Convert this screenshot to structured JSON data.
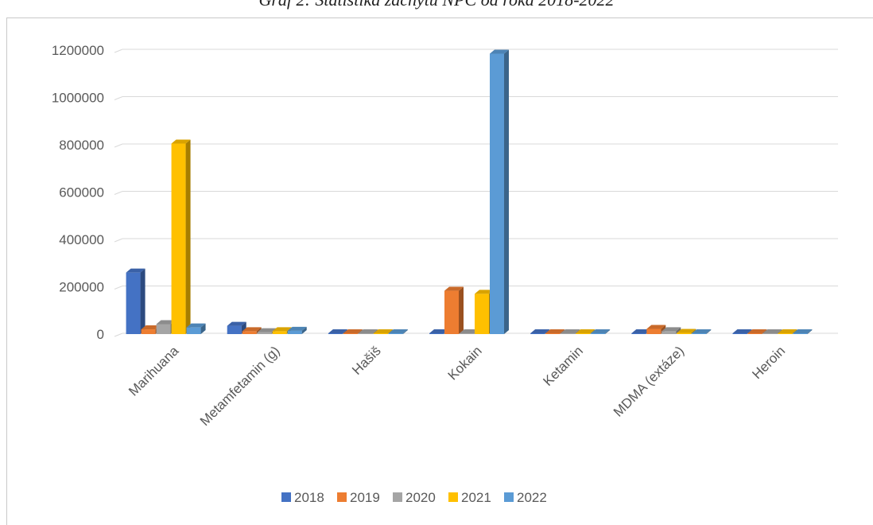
{
  "caption": "Graf 2: Štatistika záchytu NPC od roka 2018-2022",
  "chart_data": {
    "type": "bar",
    "style": "3d-clustered-column",
    "title": "",
    "xlabel": "",
    "ylabel": "",
    "categories": [
      "Marihuana",
      "Metamfetamin (g)",
      "Hašiš",
      "Kokain",
      "Ketamin",
      "MDMA (extáze)",
      "Heroin"
    ],
    "ylim": [
      0,
      1200000
    ],
    "y_ticks": [
      0,
      200000,
      400000,
      600000,
      800000,
      1000000,
      1200000
    ],
    "y_tick_labels": [
      "0",
      "200000",
      "400000",
      "600000",
      "800000",
      "1000000",
      "1200000"
    ],
    "grid": true,
    "legend_position": "bottom",
    "series": [
      {
        "name": "2018",
        "color": "#4472C4",
        "values": [
          260000,
          35000,
          1000,
          1000,
          1000,
          2000,
          1000
        ]
      },
      {
        "name": "2019",
        "color": "#ED7D31",
        "values": [
          20000,
          12000,
          1000,
          183000,
          1000,
          22000,
          3000
        ]
      },
      {
        "name": "2020",
        "color": "#A5A5A5",
        "values": [
          42000,
          8000,
          1000,
          2000,
          1000,
          12000,
          1000
        ]
      },
      {
        "name": "2021",
        "color": "#FFC000",
        "values": [
          805000,
          12000,
          2000,
          170000,
          1000,
          5000,
          3000
        ]
      },
      {
        "name": "2022",
        "color": "#5B9BD5",
        "values": [
          28000,
          14000,
          1000,
          1185000,
          1000,
          2000,
          1000
        ]
      }
    ]
  }
}
